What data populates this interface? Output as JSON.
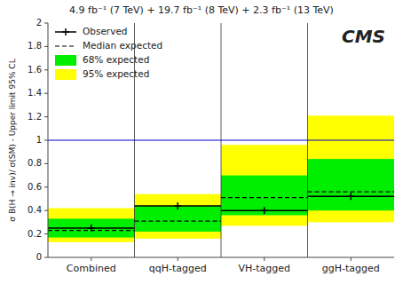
{
  "chart_data": {
    "type": "bands",
    "title": "4.9 fb⁻¹ (7 TeV) + 19.7 fb⁻¹ (8 TeV) + 2.3 fb⁻¹ (13 TeV)",
    "ylabel": "σ B(H → inv)/ σ(SM) - Upper limit 95% CL",
    "annotation": "CMS",
    "categories": [
      "Combined",
      "qqH-tagged",
      "VH-tagged",
      "ggH-tagged"
    ],
    "series": [
      {
        "name": "Observed",
        "type": "line",
        "line_style": "solid",
        "marker": "plus",
        "color": "#000000",
        "values": [
          0.25,
          0.44,
          0.4,
          0.52
        ]
      },
      {
        "name": "Median expected",
        "type": "line",
        "line_style": "dashed",
        "color": "#000000",
        "values": [
          0.23,
          0.31,
          0.51,
          0.56
        ]
      },
      {
        "name": "68% expected",
        "type": "band",
        "color": "#00ee00",
        "low": [
          0.17,
          0.22,
          0.36,
          0.4
        ],
        "high": [
          0.33,
          0.44,
          0.7,
          0.84
        ]
      },
      {
        "name": "95% expected",
        "type": "band",
        "color": "#ffff00",
        "low": [
          0.13,
          0.16,
          0.27,
          0.3
        ],
        "high": [
          0.42,
          0.54,
          0.96,
          1.21
        ]
      }
    ],
    "hline": {
      "value": 1.0,
      "color": "#0000cc"
    },
    "ylim": [
      0,
      2
    ],
    "yticks": [
      0,
      0.2,
      0.4,
      0.6,
      0.8,
      1.0,
      1.2,
      1.4,
      1.6,
      1.8,
      2.0
    ],
    "legend": "upper left",
    "grid": false
  }
}
